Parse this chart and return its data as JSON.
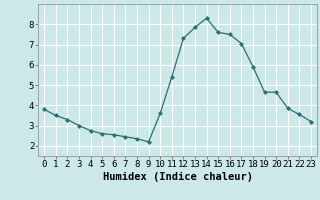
{
  "x": [
    0,
    1,
    2,
    3,
    4,
    5,
    6,
    7,
    8,
    9,
    10,
    11,
    12,
    13,
    14,
    15,
    16,
    17,
    18,
    19,
    20,
    21,
    22,
    23
  ],
  "y": [
    3.8,
    3.5,
    3.3,
    3.0,
    2.75,
    2.6,
    2.55,
    2.45,
    2.35,
    2.2,
    3.6,
    5.4,
    7.3,
    7.85,
    8.3,
    7.6,
    7.5,
    7.05,
    5.9,
    4.65,
    4.65,
    3.85,
    3.55,
    3.2
  ],
  "line_color": "#2d6e6e",
  "marker": "D",
  "marker_size": 2,
  "xlabel": "Humidex (Indice chaleur)",
  "xlim": [
    -0.5,
    23.5
  ],
  "ylim": [
    1.5,
    9.0
  ],
  "yticks": [
    2,
    3,
    4,
    5,
    6,
    7,
    8
  ],
  "xticks": [
    0,
    1,
    2,
    3,
    4,
    5,
    6,
    7,
    8,
    9,
    10,
    11,
    12,
    13,
    14,
    15,
    16,
    17,
    18,
    19,
    20,
    21,
    22,
    23
  ],
  "bg_color": "#cce8e8",
  "grid_color": "#ffffff",
  "tick_label_fontsize": 6.5,
  "xlabel_fontsize": 7.5
}
